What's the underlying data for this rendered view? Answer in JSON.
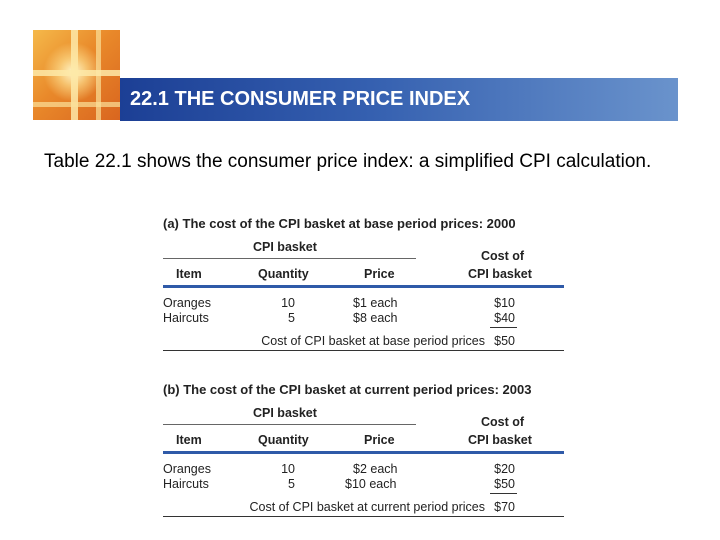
{
  "slide": {
    "title": "22.1 THE CONSUMER PRICE INDEX",
    "body": "Table 22.1 shows the consumer price index: a simplified CPI calculation."
  },
  "tables": [
    {
      "caption": "(a) The cost of the CPI basket at base period prices: 2000",
      "group_header": "CPI basket",
      "columns": [
        "Item",
        "Quantity",
        "Price",
        "Cost of",
        "CPI basket"
      ],
      "rows": [
        {
          "item": "Oranges",
          "quantity": "10",
          "price": "$1 each",
          "cost": "$10"
        },
        {
          "item": "Haircuts",
          "quantity": "5",
          "price": "$8 each",
          "cost": "$40"
        }
      ],
      "total_label": "Cost of CPI basket at base period prices",
      "total_value": "$50"
    },
    {
      "caption": "(b) The cost of the CPI basket at current period prices: 2003",
      "group_header": "CPI basket",
      "columns": [
        "Item",
        "Quantity",
        "Price",
        "Cost of",
        "CPI basket"
      ],
      "rows": [
        {
          "item": "Oranges",
          "quantity": "10",
          "price": "$2 each",
          "cost": "$20"
        },
        {
          "item": "Haircuts",
          "quantity": "5",
          "price": "$10 each",
          "cost": "$50"
        }
      ],
      "total_label": "Cost of CPI basket at current period prices",
      "total_value": "$70"
    }
  ]
}
